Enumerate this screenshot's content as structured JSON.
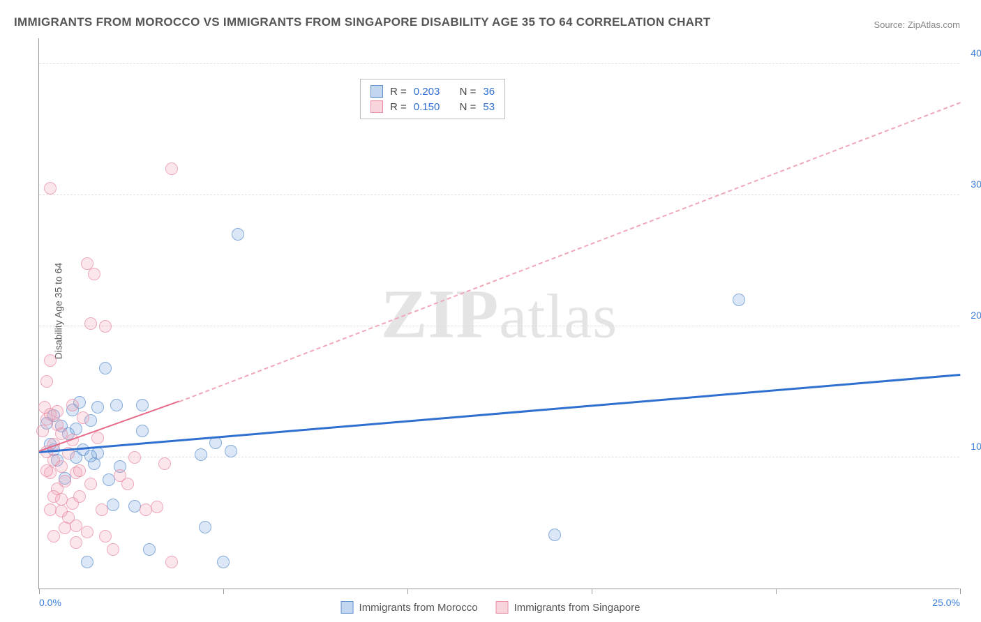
{
  "title": "IMMIGRANTS FROM MOROCCO VS IMMIGRANTS FROM SINGAPORE DISABILITY AGE 35 TO 64 CORRELATION CHART",
  "source_label": "Source: ",
  "source_value": "ZipAtlas.com",
  "y_axis_label": "Disability Age 35 to 64",
  "watermark": "ZIPatlas",
  "chart": {
    "type": "scatter",
    "xlim": [
      0,
      25
    ],
    "ylim": [
      0,
      42
    ],
    "x_ticks": [
      0,
      5,
      10,
      15,
      20,
      25
    ],
    "x_tick_labels": [
      "0.0%",
      "",
      "",
      "",
      "",
      "25.0%"
    ],
    "y_ticks": [
      10,
      20,
      30,
      40
    ],
    "y_tick_labels": [
      "10.0%",
      "20.0%",
      "30.0%",
      "40.0%"
    ],
    "grid_color": "#dddddd",
    "background_color": "#ffffff",
    "axis_color": "#999999",
    "label_color": "#3b7dd8",
    "marker_size": 18,
    "series": [
      {
        "name": "Immigrants from Morocco",
        "color_fill": "rgba(120,165,220,0.35)",
        "color_stroke": "#5d8fce",
        "trend_color": "#2f6fd0",
        "r_value": "0.203",
        "n_value": "36",
        "trend": {
          "x1": 0,
          "y1": 10.3,
          "x2": 25,
          "y2": 16.2
        },
        "points": [
          [
            0.4,
            13.2
          ],
          [
            0.6,
            12.4
          ],
          [
            0.8,
            11.8
          ],
          [
            0.4,
            10.6
          ],
          [
            0.9,
            13.6
          ],
          [
            1.6,
            13.8
          ],
          [
            1.2,
            10.6
          ],
          [
            1.5,
            9.5
          ],
          [
            1.8,
            16.8
          ],
          [
            2.1,
            14.0
          ],
          [
            2.8,
            14.0
          ],
          [
            1.0,
            12.2
          ],
          [
            0.2,
            12.6
          ],
          [
            1.0,
            10.0
          ],
          [
            1.6,
            10.3
          ],
          [
            2.2,
            9.3
          ],
          [
            1.4,
            10.1
          ],
          [
            2.0,
            6.4
          ],
          [
            2.6,
            6.3
          ],
          [
            3.0,
            3.0
          ],
          [
            4.5,
            4.7
          ],
          [
            1.3,
            2.0
          ],
          [
            5.0,
            2.0
          ],
          [
            4.8,
            11.1
          ],
          [
            5.4,
            27.0
          ],
          [
            5.2,
            10.5
          ],
          [
            4.4,
            10.2
          ],
          [
            2.8,
            12.0
          ],
          [
            0.7,
            8.4
          ],
          [
            14.0,
            4.1
          ],
          [
            19.0,
            22.0
          ],
          [
            1.1,
            14.2
          ],
          [
            0.5,
            9.8
          ],
          [
            1.9,
            8.3
          ],
          [
            0.3,
            11.0
          ],
          [
            1.4,
            12.8
          ]
        ]
      },
      {
        "name": "Immigrants from Singapore",
        "color_fill": "rgba(240,160,180,0.35)",
        "color_stroke": "#e98ca3",
        "trend_color": "#e56b88",
        "r_value": "0.150",
        "n_value": "53",
        "trend_solid": {
          "x1": 0,
          "y1": 10.4,
          "x2": 3.8,
          "y2": 14.2
        },
        "trend_dash": {
          "x1": 3.8,
          "y1": 14.2,
          "x2": 25,
          "y2": 37.0
        },
        "points": [
          [
            0.3,
            30.5
          ],
          [
            3.6,
            32.0
          ],
          [
            1.3,
            24.8
          ],
          [
            1.5,
            24.0
          ],
          [
            1.4,
            20.2
          ],
          [
            1.8,
            20.0
          ],
          [
            0.3,
            17.4
          ],
          [
            0.2,
            15.8
          ],
          [
            0.2,
            12.9
          ],
          [
            0.3,
            13.3
          ],
          [
            0.1,
            12.0
          ],
          [
            0.5,
            12.5
          ],
          [
            0.6,
            11.8
          ],
          [
            0.4,
            11.0
          ],
          [
            0.2,
            10.4
          ],
          [
            0.4,
            9.8
          ],
          [
            0.6,
            9.3
          ],
          [
            0.3,
            8.8
          ],
          [
            0.7,
            8.2
          ],
          [
            0.5,
            7.6
          ],
          [
            0.4,
            7.0
          ],
          [
            0.9,
            6.5
          ],
          [
            0.6,
            5.9
          ],
          [
            0.8,
            5.4
          ],
          [
            1.0,
            4.8
          ],
          [
            1.3,
            4.3
          ],
          [
            0.7,
            4.6
          ],
          [
            1.1,
            7.0
          ],
          [
            1.4,
            8.0
          ],
          [
            1.0,
            8.8
          ],
          [
            1.6,
            11.5
          ],
          [
            1.8,
            4.0
          ],
          [
            2.2,
            8.6
          ],
          [
            2.4,
            8.0
          ],
          [
            2.0,
            3.0
          ],
          [
            2.6,
            10.0
          ],
          [
            2.9,
            6.0
          ],
          [
            3.2,
            6.2
          ],
          [
            3.4,
            9.5
          ],
          [
            3.6,
            2.0
          ],
          [
            1.2,
            13.0
          ],
          [
            0.9,
            14.0
          ],
          [
            0.5,
            13.5
          ],
          [
            0.8,
            10.3
          ],
          [
            0.2,
            9.0
          ],
          [
            0.6,
            6.8
          ],
          [
            1.0,
            3.5
          ],
          [
            0.4,
            4.0
          ],
          [
            1.7,
            6.0
          ],
          [
            0.3,
            6.0
          ],
          [
            0.9,
            11.3
          ],
          [
            1.1,
            9.0
          ],
          [
            0.15,
            13.8
          ]
        ]
      }
    ]
  },
  "legend": {
    "morocco": "Immigrants from Morocco",
    "singapore": "Immigrants from Singapore"
  },
  "stats": {
    "r_label": "R =",
    "n_label": "N ="
  }
}
